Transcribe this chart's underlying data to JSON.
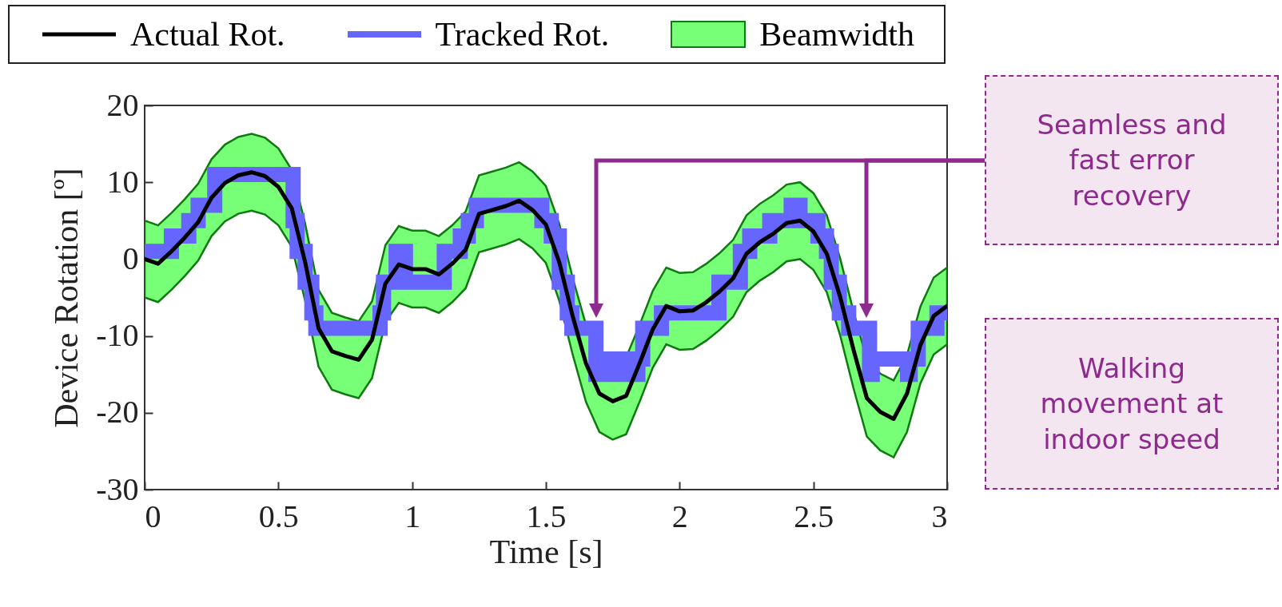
{
  "chart_data": {
    "type": "line",
    "xlabel": "Time [s]",
    "ylabel": "Device Rotation [º]",
    "xlim": [
      0,
      3
    ],
    "xticks": [
      0,
      0.5,
      1,
      1.5,
      2,
      2.5,
      3
    ],
    "ylim": [
      -30,
      20
    ],
    "yticks": [
      -30,
      -20,
      -10,
      0,
      10,
      20
    ],
    "legend": "top left",
    "annotations": [
      "Seamless and fast error recovery",
      "Walking movement at indoor speed"
    ],
    "series": [
      {
        "name": "Actual Rot.",
        "type": "line",
        "color": "#000000",
        "x": [
          0,
          0.05,
          0.1,
          0.15,
          0.2,
          0.25,
          0.3,
          0.35,
          0.4,
          0.45,
          0.5,
          0.55,
          0.6,
          0.65,
          0.7,
          0.75,
          0.8,
          0.85,
          0.9,
          0.95,
          1,
          1.05,
          1.1,
          1.15,
          1.2,
          1.25,
          1.3,
          1.35,
          1.4,
          1.45,
          1.5,
          1.55,
          1.6,
          1.65,
          1.7,
          1.75,
          1.8,
          1.85,
          1.9,
          1.95,
          2,
          2.05,
          2.1,
          2.15,
          2.2,
          2.25,
          2.3,
          2.35,
          2.4,
          2.45,
          2.5,
          2.55,
          2.6,
          2.65,
          2.7,
          2.75,
          2.8,
          2.85,
          2.9,
          2.95,
          3
        ],
        "values": [
          0,
          -0.6,
          1,
          2.8,
          4.8,
          8,
          9.9,
          10.9,
          11.3,
          10.8,
          9.4,
          6.6,
          -0.4,
          -9,
          -12,
          -12.6,
          -13.1,
          -10.5,
          -3.2,
          -0.7,
          -1.3,
          -1.3,
          -2,
          -0.6,
          1.2,
          5.9,
          6.4,
          6.9,
          7.6,
          6.4,
          4.5,
          -0.4,
          -7.4,
          -13.6,
          -17.5,
          -18.5,
          -17.8,
          -13.6,
          -9.1,
          -6.1,
          -6.8,
          -6.7,
          -5.6,
          -4.2,
          -2.5,
          0.7,
          2.2,
          3.3,
          4.7,
          5,
          3.6,
          0.7,
          -4.9,
          -11.8,
          -18.1,
          -19.9,
          -20.8,
          -17.5,
          -11.2,
          -7.4,
          -6.1
        ]
      },
      {
        "name": "Tracked Rot.",
        "type": "step",
        "color": "#6666ff",
        "x": [
          0,
          0.1,
          0.165,
          0.2,
          0.262,
          0.555,
          0.57,
          0.6,
          0.625,
          0.64,
          0.88,
          0.893,
          0.94,
          0.975,
          1.12,
          1.18,
          1.21,
          1.24,
          1.485,
          1.52,
          1.55,
          1.58,
          1.597,
          1.687,
          1.7,
          1.712,
          1.724,
          1.736,
          1.748,
          1.76,
          1.772,
          1.784,
          1.796,
          1.808,
          1.82,
          1.832,
          1.844,
          1.862,
          1.932,
          2.147,
          2.227,
          2.262,
          2.337,
          2.417,
          2.45,
          2.517,
          2.549,
          2.567,
          2.597,
          2.632,
          2.71,
          2.72,
          2.852,
          2.862,
          2.892,
          2.962,
          3
        ],
        "values": [
          1,
          3,
          5,
          7,
          11,
          5,
          1,
          -3,
          -7,
          -9,
          -7,
          -3,
          1,
          -3,
          1,
          3,
          5,
          7,
          5,
          3,
          -3,
          -7,
          -9,
          -15,
          -13,
          -15,
          -13,
          -15,
          -13,
          -15,
          -13,
          -15,
          -13,
          -15,
          -13,
          -15,
          -13,
          -9,
          -7,
          -3,
          1,
          3,
          5,
          7,
          5,
          3,
          1,
          -3,
          -7,
          -9,
          -15,
          -13,
          -15,
          -13,
          -9,
          -7,
          -7
        ]
      },
      {
        "name": "Beamwidth",
        "type": "area",
        "color": "#77ff77",
        "x": [
          0,
          0.05,
          0.1,
          0.15,
          0.2,
          0.25,
          0.3,
          0.35,
          0.4,
          0.45,
          0.5,
          0.55,
          0.6,
          0.65,
          0.7,
          0.75,
          0.8,
          0.85,
          0.9,
          0.95,
          1,
          1.05,
          1.1,
          1.15,
          1.2,
          1.25,
          1.3,
          1.35,
          1.4,
          1.45,
          1.5,
          1.55,
          1.6,
          1.65,
          1.7,
          1.75,
          1.8,
          1.85,
          1.9,
          1.95,
          2,
          2.05,
          2.1,
          2.15,
          2.2,
          2.25,
          2.3,
          2.35,
          2.4,
          2.45,
          2.5,
          2.55,
          2.6,
          2.65,
          2.7,
          2.75,
          2.8,
          2.85,
          2.9,
          2.95,
          3
        ],
        "values": [
          null,
          null,
          null,
          null,
          null,
          null,
          null,
          null,
          null,
          null,
          null,
          null,
          null,
          null,
          null,
          null,
          null,
          null,
          null,
          null,
          null,
          null,
          null,
          null,
          null,
          null,
          null,
          null,
          null,
          null,
          null,
          null,
          null,
          null,
          null,
          null,
          null,
          null,
          null,
          null,
          null,
          null,
          null,
          null,
          null,
          null,
          null,
          null,
          null,
          null,
          null,
          null,
          null,
          null,
          null,
          null,
          null,
          null,
          null,
          null,
          null
        ],
        "upper": [
          5,
          4.4,
          6,
          7.8,
          9.8,
          13,
          14.9,
          15.9,
          16.3,
          15.8,
          14.4,
          11.6,
          4.6,
          -4,
          -7,
          -7.6,
          -8.1,
          -5.5,
          1.8,
          4.3,
          3.7,
          3.7,
          3,
          4.4,
          6.2,
          10.9,
          11.4,
          11.9,
          12.6,
          11.4,
          9.5,
          4.6,
          -2.4,
          -8.6,
          -12.5,
          -13.5,
          -12.8,
          -8.6,
          -4.1,
          -1.1,
          -1.8,
          -1.7,
          -0.6,
          0.8,
          2.5,
          5.7,
          7.2,
          8.3,
          9.7,
          10,
          8.6,
          5.7,
          0.1,
          -6.8,
          -13.1,
          -14.9,
          -15.8,
          -12.5,
          -6.2,
          -2.4,
          -1.1
        ],
        "lower": [
          -5,
          -5.6,
          -4,
          -2.2,
          -0.2,
          3,
          4.9,
          5.9,
          6.3,
          5.8,
          4.4,
          1.6,
          -5.4,
          -14,
          -17,
          -17.6,
          -18.1,
          -15.5,
          -8.2,
          -5.7,
          -6.3,
          -6.3,
          -7,
          -5.6,
          -3.8,
          0.9,
          1.4,
          1.9,
          2.6,
          1.4,
          -0.5,
          -5.4,
          -12.4,
          -18.6,
          -22.5,
          -23.5,
          -22.8,
          -18.6,
          -14.1,
          -11.1,
          -11.8,
          -11.7,
          -10.6,
          -9.2,
          -7.5,
          -4.3,
          -2.8,
          -1.7,
          -0.3,
          0,
          -1.4,
          -4.3,
          -9.9,
          -16.8,
          -23.1,
          -24.9,
          -25.8,
          -22.5,
          -16.2,
          -12.4,
          -11.1
        ]
      }
    ]
  }
}
